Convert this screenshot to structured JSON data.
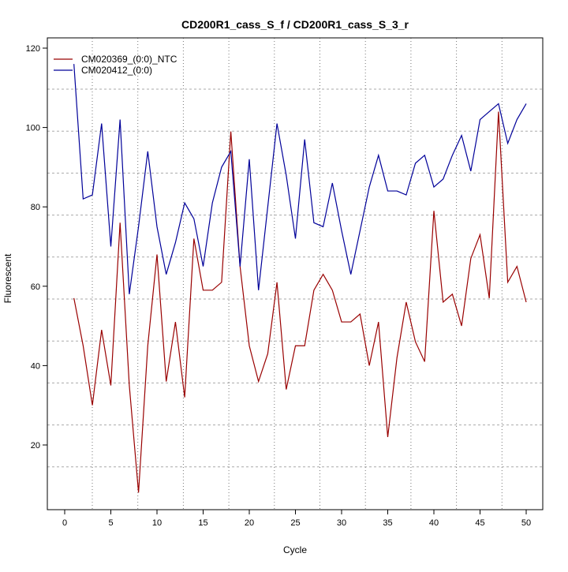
{
  "chart_data": {
    "type": "line",
    "title": "CD200R1_cass_S_f / CD200R1_cass_S_3_r",
    "xlabel": "Cycle",
    "ylabel": "Fluorescent",
    "xlim": [
      -2,
      52
    ],
    "ylim": [
      3,
      123
    ],
    "xticks": [
      0,
      5,
      10,
      15,
      20,
      25,
      30,
      35,
      40,
      45,
      50
    ],
    "yticks": [
      20,
      40,
      60,
      80,
      100,
      120
    ],
    "grid": true,
    "legend_position": "top-left",
    "x": [
      1,
      2,
      3,
      4,
      5,
      6,
      7,
      8,
      9,
      10,
      11,
      12,
      13,
      14,
      15,
      16,
      17,
      18,
      19,
      20,
      21,
      22,
      23,
      24,
      25,
      26,
      27,
      28,
      29,
      30,
      31,
      32,
      33,
      34,
      35,
      36,
      37,
      38,
      39,
      40,
      41,
      42,
      43,
      44,
      45,
      46,
      47,
      48,
      49,
      50
    ],
    "series": [
      {
        "name": "CM020369_(0:0)_NTC",
        "color": "#990000",
        "values": [
          57,
          45,
          30,
          49,
          35,
          76,
          35,
          8,
          45,
          68,
          36,
          51,
          32,
          72,
          59,
          59,
          61,
          99,
          65,
          45,
          36,
          43,
          61,
          34,
          45,
          45,
          59,
          63,
          59,
          51,
          51,
          53,
          40,
          51,
          22,
          42,
          56,
          46,
          41,
          79,
          56,
          58,
          50,
          67,
          73,
          57,
          104,
          61,
          65,
          56
        ]
      },
      {
        "name": "CM020412_(0:0)",
        "color": "#000099",
        "values": [
          116,
          82,
          83,
          101,
          70,
          102,
          58,
          75,
          94,
          75,
          63,
          71,
          81,
          77,
          65,
          81,
          90,
          94,
          65,
          92,
          59,
          80,
          101,
          88,
          72,
          97,
          76,
          75,
          86,
          74,
          63,
          74,
          85,
          93,
          84,
          84,
          83,
          91,
          93,
          85,
          87,
          93,
          98,
          89,
          102,
          104,
          106,
          96,
          102,
          106
        ]
      }
    ]
  }
}
